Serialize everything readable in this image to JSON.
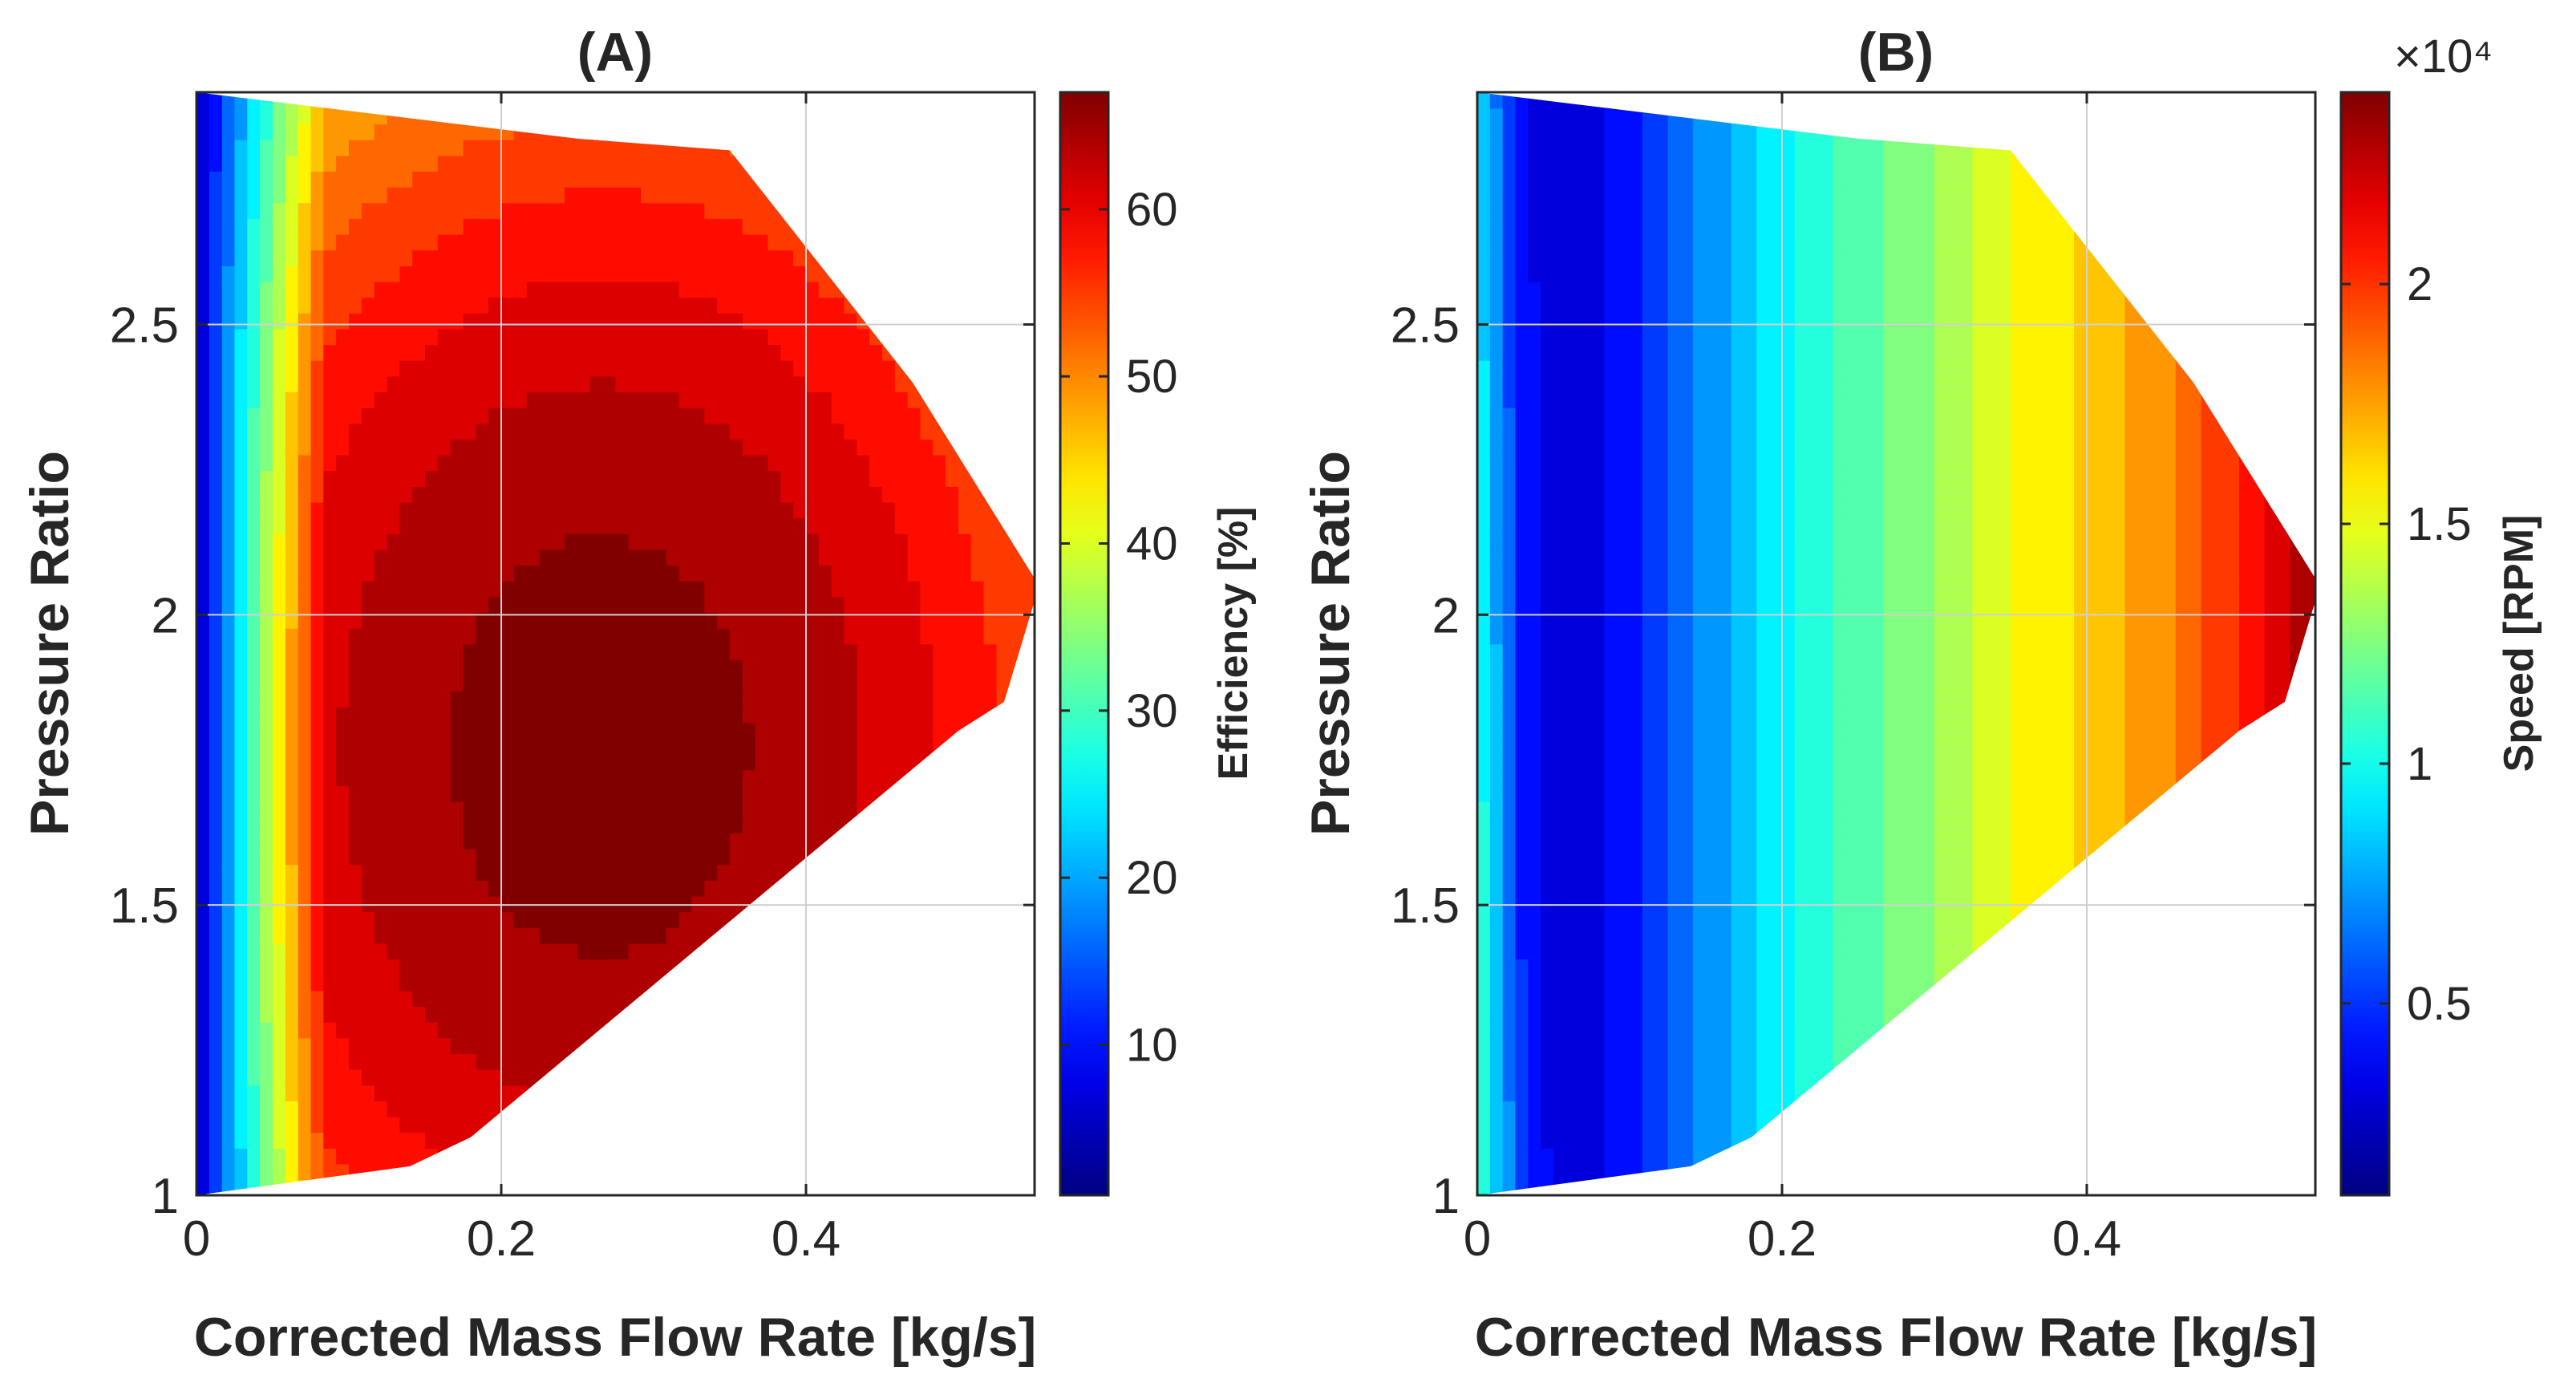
{
  "chart_data": [
    {
      "type": "heatmap",
      "title": "(A)",
      "xlabel": "Corrected Mass Flow Rate [kg/s]",
      "ylabel": "Pressure Ratio",
      "xlim": [
        0,
        0.55
      ],
      "ylim": [
        1,
        2.9
      ],
      "xticks": [
        0,
        0.2,
        0.4
      ],
      "xtick_labels": [
        "0",
        "0.2",
        "0.4"
      ],
      "yticks": [
        1,
        1.5,
        2,
        2.5
      ],
      "ytick_labels": [
        "1",
        "1.5",
        "2",
        "2.5"
      ],
      "grid": true,
      "colormap": "jet",
      "colorbar": {
        "label": "Efficiency [%]",
        "range": [
          1,
          67
        ],
        "ticks": [
          10,
          20,
          30,
          40,
          50,
          60
        ],
        "tick_labels": [
          "10",
          "20",
          "30",
          "40",
          "50",
          "60"
        ],
        "multiplier": ""
      },
      "boundary": [
        [
          0,
          1.0
        ],
        [
          0.14,
          1.05
        ],
        [
          0.18,
          1.1
        ],
        [
          0.5,
          1.8
        ],
        [
          0.53,
          1.85
        ],
        [
          0.553,
          2.05
        ],
        [
          0.47,
          2.4
        ],
        [
          0.35,
          2.8
        ],
        [
          0.25,
          2.82
        ],
        [
          0,
          2.9
        ]
      ],
      "value_range": {
        "min_level": 2,
        "peak": 67
      },
      "peak_region": {
        "mass_flow": [
          0.15,
          0.38
        ],
        "pressure_ratio": [
          1.45,
          2.1
        ]
      }
    },
    {
      "type": "heatmap",
      "title": "(B)",
      "xlabel": "Corrected Mass Flow Rate [kg/s]",
      "ylabel": "Pressure Ratio",
      "xlim": [
        0,
        0.55
      ],
      "ylim": [
        1,
        2.9
      ],
      "xticks": [
        0,
        0.2,
        0.4
      ],
      "xtick_labels": [
        "0",
        "0.2",
        "0.4"
      ],
      "yticks": [
        1,
        1.5,
        2,
        2.5
      ],
      "ytick_labels": [
        "1",
        "1.5",
        "2",
        "2.5"
      ],
      "grid": true,
      "colormap": "jet",
      "colorbar": {
        "label": "Speed [RPM]",
        "range": [
          1000,
          24000
        ],
        "ticks": [
          5000,
          10000,
          15000,
          20000
        ],
        "tick_labels": [
          "0.5",
          "1",
          "1.5",
          "2"
        ],
        "multiplier": "×10⁴"
      },
      "boundary": [
        [
          0,
          1.0
        ],
        [
          0.14,
          1.05
        ],
        [
          0.18,
          1.1
        ],
        [
          0.5,
          1.8
        ],
        [
          0.53,
          1.85
        ],
        [
          0.553,
          2.05
        ],
        [
          0.47,
          2.4
        ],
        [
          0.35,
          2.8
        ],
        [
          0.25,
          2.82
        ],
        [
          0,
          2.9
        ]
      ],
      "speed_profile": {
        "mass_flow": [
          0,
          0.03,
          0.06,
          0.1,
          0.15,
          0.2,
          0.25,
          0.3,
          0.35,
          0.4,
          0.45,
          0.5,
          0.55
        ],
        "speed_rpm": [
          10000,
          4000,
          3000,
          4000,
          7000,
          9500,
          11500,
          13000,
          15000,
          16500,
          18000,
          20500,
          23500
        ]
      }
    }
  ]
}
